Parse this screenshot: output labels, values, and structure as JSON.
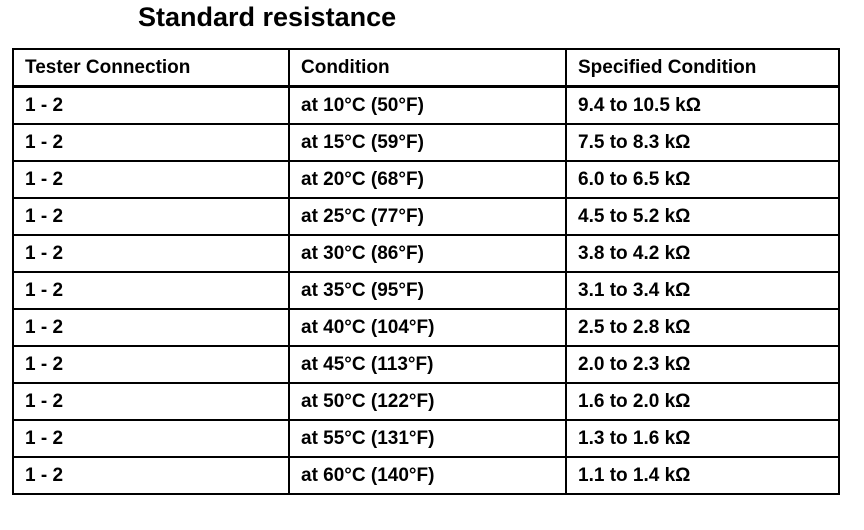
{
  "header": {
    "title": "Standard resistance"
  },
  "table": {
    "columns": [
      "Tester Connection",
      "Condition",
      "Specified Condition"
    ],
    "rows": [
      [
        "1 - 2",
        "at 10°C (50°F)",
        "9.4 to 10.5 kΩ"
      ],
      [
        "1 - 2",
        "at 15°C (59°F)",
        "7.5 to 8.3 kΩ"
      ],
      [
        "1 - 2",
        "at 20°C (68°F)",
        "6.0 to 6.5 kΩ"
      ],
      [
        "1 - 2",
        "at 25°C (77°F)",
        "4.5 to 5.2 kΩ"
      ],
      [
        "1 - 2",
        "at 30°C (86°F)",
        "3.8 to 4.2 kΩ"
      ],
      [
        "1 - 2",
        "at 35°C (95°F)",
        "3.1 to 3.4 kΩ"
      ],
      [
        "1 - 2",
        "at 40°C (104°F)",
        "2.5 to 2.8 kΩ"
      ],
      [
        "1 - 2",
        "at 45°C (113°F)",
        "2.0 to 2.3 kΩ"
      ],
      [
        "1 - 2",
        "at 50°C (122°F)",
        "1.6 to 2.0 kΩ"
      ],
      [
        "1 - 2",
        "at 55°C (131°F)",
        "1.3 to 1.6 kΩ"
      ],
      [
        "1 - 2",
        "at 60°C (140°F)",
        "1.1 to 1.4 kΩ"
      ]
    ]
  }
}
